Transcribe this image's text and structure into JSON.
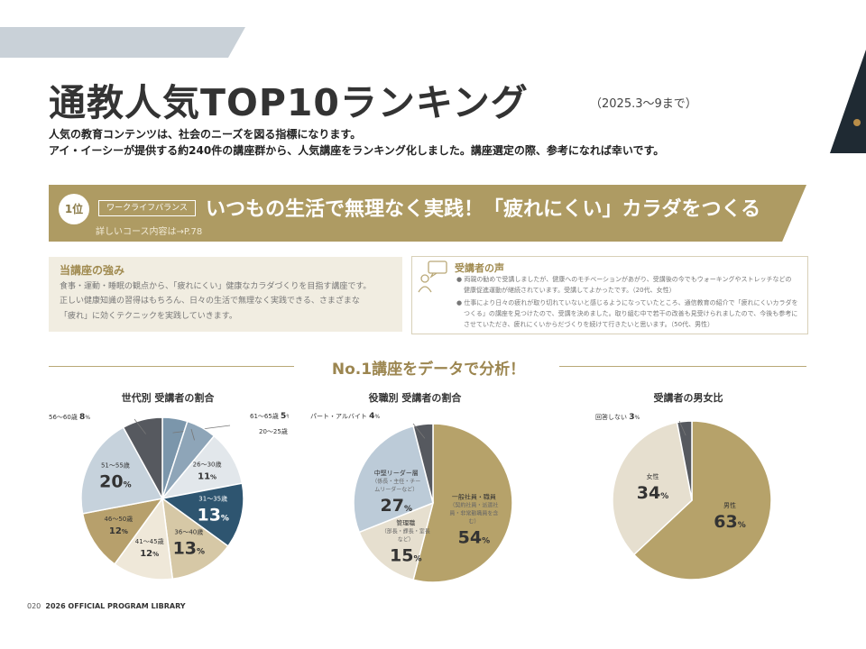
{
  "header": {
    "title": "通教人気TOP10ランキング",
    "period": "（2025.3〜9まで）",
    "intro_line1": "人気の教育コンテンツは、社会のニーズを図る指標になります。",
    "intro_line2": "アイ・イーシーが提供する約240件の講座群から、人気講座をランキング化しました。講座選定の際、参考になれば幸いです。"
  },
  "rank": {
    "position": "1位",
    "tag": "ワークライフバランス",
    "title": "いつもの生活で無理なく実践！「疲れにくい」カラダをつくる",
    "link": "詳しいコース内容は→P.78"
  },
  "strength": {
    "heading": "当講座の強み",
    "lines": [
      "食事・運動・睡眠の観点から、「疲れにくい」健康なカラダづくりを目指す講座です。",
      "正しい健康知識の習得はもちろん、日々の生活で無理なく実践できる、さまざまな",
      "「疲れ」に効くテクニックを実践していきます。"
    ]
  },
  "voice": {
    "heading": "受講者の声",
    "lines": [
      "● 両親の勧めで受講しましたが、健康へのモチベーションがあがり、受講後の今でもウォーキングやストレッチなどの",
      "健康促進運動が継続されています。受講してよかったです。（20代、女性）",
      "● 仕事により日々の疲れが取り切れていないと感じるようになっていたところ、通信教育の紹介で「疲れにくいカラダを",
      "つくる」の講座を見つけたので、受講を決めました。取り組む中で若干の改善も見受けられましたので、今後も参考に",
      "させていただき、疲れにくいからだづくりを続けて行きたいと思います。（50代、男性）"
    ]
  },
  "analysis_title": "No.1講座をデータで分析！",
  "footer": {
    "page": "020",
    "library": "2026 OFFICIAL PROGRAM LIBRARY"
  },
  "chart_data": [
    {
      "type": "pie",
      "title": "世代別 受講者の割合",
      "slices": [
        {
          "label": "61〜65歳",
          "value": 5,
          "color": "#7b96ab"
        },
        {
          "label": "20〜25歳",
          "value": 6,
          "color": "#8ea5b8"
        },
        {
          "label": "26〜30歳",
          "value": 11,
          "color": "#e2e7eb"
        },
        {
          "label": "31〜35歳",
          "value": 13,
          "color": "#2e5570"
        },
        {
          "label": "36〜40歳",
          "value": 13,
          "color": "#d6c8a6"
        },
        {
          "label": "41〜45歳",
          "value": 12,
          "color": "#efe8d9"
        },
        {
          "label": "46〜50歳",
          "value": 12,
          "color": "#b7a06c"
        },
        {
          "label": "51〜55歳",
          "value": 20,
          "color": "#c6d2dc"
        },
        {
          "label": "56〜60歳",
          "value": 8,
          "color": "#56595f"
        }
      ]
    },
    {
      "type": "pie",
      "title": "役職別 受講者の割合",
      "slices": [
        {
          "label": "一般社員・職員",
          "sublabel": "（契約社員・派遣社員・非常勤職員を含む）",
          "value": 54,
          "color": "#b6a26a"
        },
        {
          "label": "管理職",
          "sublabel": "（部長・課長・室長など）",
          "value": 15,
          "color": "#e6dfcf"
        },
        {
          "label": "中堅リーダー層",
          "sublabel": "（係長・主任・チームリーダーなど）",
          "value": 27,
          "color": "#bccbd8"
        },
        {
          "label": "パート・アルバイト",
          "value": 4,
          "color": "#56595f"
        }
      ]
    },
    {
      "type": "pie",
      "title": "受講者の男女比",
      "slices": [
        {
          "label": "男性",
          "value": 63,
          "color": "#b6a26a"
        },
        {
          "label": "女性",
          "value": 34,
          "color": "#e6dfcf"
        },
        {
          "label": "回答しない",
          "value": 3,
          "color": "#56595f"
        }
      ]
    }
  ]
}
